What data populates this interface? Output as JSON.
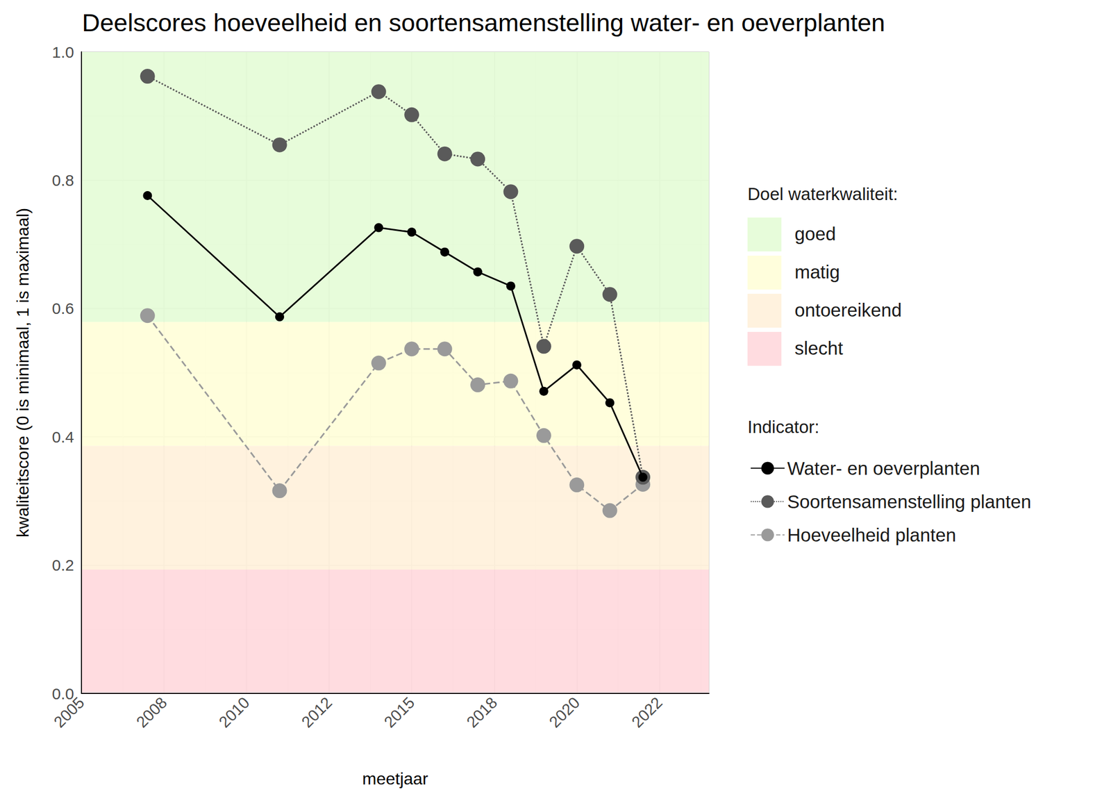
{
  "chart_data": {
    "type": "line",
    "title": "Deelscores hoeveelheid en soortensamenstelling water- en oeverplanten",
    "x_label": "meetjaar",
    "y_label": "kwaliteitscore (0 is minimaal, 1 is maximaal)",
    "xlim": [
      2005,
      2024
    ],
    "xticks": [
      2005,
      {
        "value": 2007.5,
        "label": "2008"
      },
      2010,
      {
        "value": 2012.5,
        "label": "2012"
      },
      2015,
      {
        "value": 2017.5,
        "label": "2018"
      },
      2020,
      {
        "value": 2022.5,
        "label": "2022"
      }
    ],
    "ylim": [
      0,
      1
    ],
    "yticks": [
      {
        "value": 0,
        "label": "0.0"
      },
      0.2,
      0.4,
      0.6,
      0.8,
      {
        "value": 1,
        "label": "1.0"
      }
    ],
    "grid": true,
    "legend": "right",
    "band_legend_title": "Doel waterkwaliteit:",
    "bands": [
      {
        "name": "goed",
        "from": 0.579,
        "to": 1,
        "color": "#e3fcd4"
      },
      {
        "name": "matig",
        "from": 0.386,
        "to": 0.579,
        "color": "#fffed6"
      },
      {
        "name": "ontoereikend",
        "from": 0.193,
        "to": 0.386,
        "color": "#fff0d8"
      },
      {
        "name": "slecht",
        "from": 0,
        "to": 0.193,
        "color": "#ffd6da"
      }
    ],
    "legend_title": "Indicator:",
    "x": [
      2007,
      2011,
      2014,
      2015,
      2016,
      2017,
      2018,
      2019,
      2020,
      2021,
      2022
    ],
    "series": [
      {
        "name": "Water- en oeverplanten",
        "color": "#000000",
        "line_style": "solid",
        "marker": "circle",
        "values": [
          0.776,
          0.587,
          0.726,
          0.719,
          0.688,
          0.657,
          0.635,
          0.471,
          0.512,
          0.453,
          0.337
        ]
      },
      {
        "name": "Soortensamenstelling planten",
        "color": "#5a5a5a",
        "line_style": "dotted",
        "marker": "circle",
        "values": [
          0.962,
          0.855,
          0.938,
          0.902,
          0.841,
          0.833,
          0.782,
          0.541,
          0.697,
          0.622,
          0.337
        ]
      },
      {
        "name": "Hoeveelheid planten",
        "color": "#9a9a9a",
        "line_style": "dashed",
        "marker": "circle",
        "values": [
          0.589,
          0.316,
          0.515,
          0.537,
          0.537,
          0.481,
          0.487,
          0.402,
          0.325,
          0.285,
          0.326
        ]
      }
    ]
  }
}
